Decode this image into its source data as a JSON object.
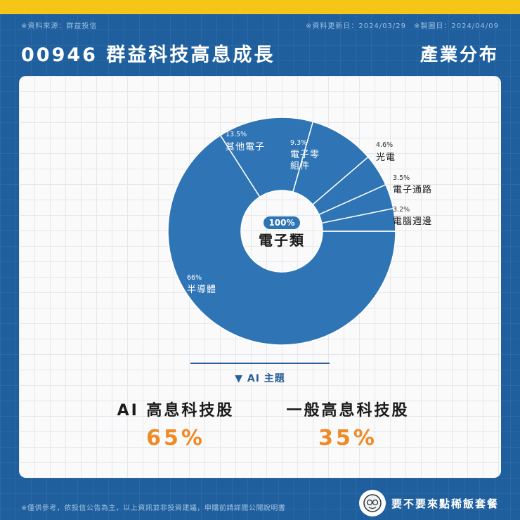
{
  "header": {
    "source": "※資料來源：群益投信",
    "dates": "※資料更新日：2024/03/29　※製圖日：2024/04/09",
    "title": "00946 群益科技高息成長",
    "subtitle": "產業分布"
  },
  "chart_data": {
    "type": "pie",
    "center_badge": "100%",
    "center_label": "電子類",
    "slices": [
      {
        "label": "半導體",
        "pct_label": "66%",
        "value": 66
      },
      {
        "label": "其他電子",
        "pct_label": "13.5%",
        "value": 13.5
      },
      {
        "label": "電子零組件",
        "pct_label": "9.3%",
        "value": 9.3
      },
      {
        "label": "光電",
        "pct_label": "4.6%",
        "value": 4.6
      },
      {
        "label": "電子通路",
        "pct_label": "3.5%",
        "value": 3.5
      },
      {
        "label": "電腦週邊",
        "pct_label": "3.2%",
        "value": 3.2
      }
    ]
  },
  "ai_theme": {
    "label": "▼ AI 主題",
    "items": [
      {
        "name": "AI 高息科技股",
        "value": "65%"
      },
      {
        "name": "一般高息科技股",
        "value": "35%"
      }
    ]
  },
  "footer": {
    "note": "※僅供參考，依投信公告為主，以上資訊並非投資建議，申購前請詳閱公開說明書",
    "brand": "要不要來點稀飯套餐"
  },
  "colors": {
    "slice": "#2f75b5",
    "accent": "#f08a24",
    "title_bg": "#1f5f9e",
    "top_bar": "#f5c518"
  }
}
